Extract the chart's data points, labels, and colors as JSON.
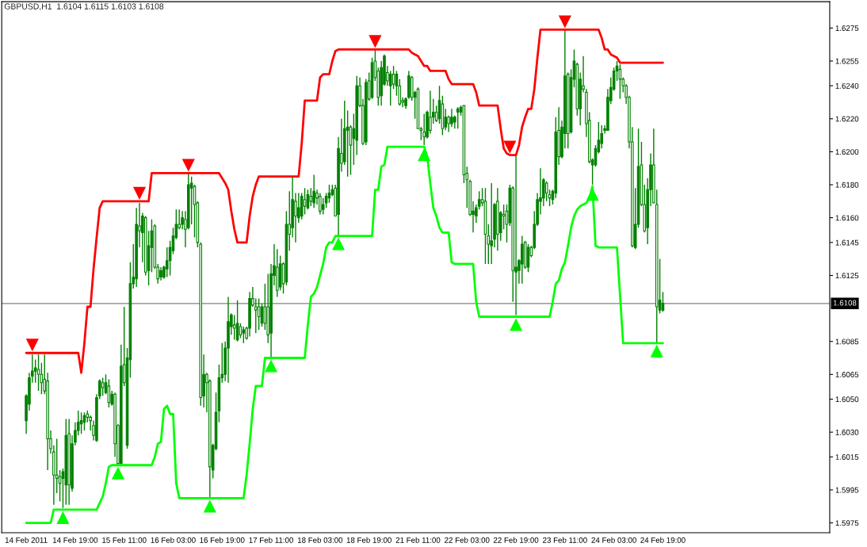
{
  "chart_data": {
    "type": "candlestick",
    "title": "GBPUSD,H1  1.6104 1.6115 1.6103 1.6108",
    "color": "#008000",
    "categories": [
      "14 Feb 2011",
      null,
      null,
      null,
      null,
      null,
      null,
      null,
      null,
      null,
      null,
      null,
      null,
      null,
      null,
      null,
      "14 Feb 19:00",
      null,
      null,
      null,
      null,
      null,
      null,
      null,
      null,
      null,
      null,
      null,
      null,
      null,
      null,
      null,
      "15 Feb 11:00",
      null,
      null,
      null,
      null,
      null,
      null,
      null,
      null,
      null,
      null,
      null,
      null,
      null,
      null,
      null,
      "16 Feb 03:00",
      null,
      null,
      null,
      null,
      null,
      null,
      null,
      null,
      null,
      null,
      null,
      null,
      null,
      null,
      null,
      "16 Feb 19:00",
      null,
      null,
      null,
      null,
      null,
      null,
      null,
      null,
      null,
      null,
      null,
      null,
      null,
      null,
      null,
      "17 Feb 11:00",
      null,
      null,
      null,
      null,
      null,
      null,
      null,
      null,
      null,
      null,
      null,
      null,
      null,
      null,
      null,
      "18 Feb 03:00",
      null,
      null,
      null,
      null,
      null,
      null,
      null,
      null,
      null,
      null,
      null,
      null,
      null,
      null,
      null,
      "18 Feb 19:00",
      null,
      null,
      null,
      null,
      null,
      null,
      null,
      null,
      null,
      null,
      null,
      null,
      null,
      null,
      null,
      "21 Feb 11:00",
      null,
      null,
      null,
      null,
      null,
      null,
      null,
      null,
      null,
      null,
      null,
      null,
      null,
      null,
      null,
      "22 Feb 03:00",
      null,
      null,
      null,
      null,
      null,
      null,
      null,
      null,
      null,
      null,
      null,
      null,
      null,
      null,
      null,
      "22 Feb 19:00",
      null,
      null,
      null,
      null,
      null,
      null,
      null,
      null,
      null,
      null,
      null,
      null,
      null,
      null,
      null,
      "23 Feb 11:00",
      null,
      null,
      null,
      null,
      null,
      null,
      null,
      null,
      null,
      null,
      null,
      null,
      null,
      null,
      null,
      "24 Feb 03:00",
      null,
      null,
      null,
      null,
      null,
      null,
      null,
      null,
      null,
      null,
      null,
      null,
      null,
      null,
      null,
      "24 Feb 19:00"
    ],
    "ohlc": [
      [
        1.6037,
        1.6053,
        1.6029,
        1.6052
      ],
      [
        1.6047,
        1.6066,
        1.6043,
        1.6063
      ],
      [
        1.6064,
        1.6077,
        1.606,
        1.6067
      ],
      [
        1.6067,
        1.6074,
        1.606,
        1.6069
      ],
      [
        1.6068,
        1.6077,
        1.6055,
        1.6065
      ],
      [
        1.6065,
        1.6072,
        1.6053,
        1.606
      ],
      [
        1.6062,
        1.6077,
        1.6053,
        1.6055
      ],
      [
        1.6061,
        1.6066,
        1.6007,
        1.6026
      ],
      [
        1.6026,
        1.6031,
        1.6017,
        1.602
      ],
      [
        1.6018,
        1.6022,
        1.5986,
        1.6004
      ],
      [
        1.6004,
        1.6026,
        1.5993,
        1.6002
      ],
      [
        1.6003,
        1.6007,
        1.5988,
        1.5999
      ],
      [
        1.6002,
        1.6008,
        1.5984,
        1.6006
      ],
      [
        1.5998,
        1.6038,
        1.5986,
        1.6028
      ],
      [
        1.6029,
        1.6038,
        1.5986,
        1.5998
      ],
      [
        1.5996,
        1.6028,
        1.5994,
        1.6023
      ],
      [
        1.6024,
        1.6036,
        1.6022,
        1.6031
      ],
      [
        1.6031,
        1.6043,
        1.6028,
        1.6036
      ],
      [
        1.6035,
        1.6042,
        1.6029,
        1.6037
      ],
      [
        1.6036,
        1.6042,
        1.6031,
        1.604
      ],
      [
        1.6041,
        1.6043,
        1.6036,
        1.6039
      ],
      [
        1.6039,
        1.604,
        1.6031,
        1.6037
      ],
      [
        1.6034,
        1.6037,
        1.6025,
        1.6028
      ],
      [
        1.6025,
        1.6053,
        1.6024,
        1.6051
      ],
      [
        1.6052,
        1.6062,
        1.605,
        1.6061
      ],
      [
        1.606,
        1.6063,
        1.6052,
        1.6057
      ],
      [
        1.6054,
        1.6065,
        1.6053,
        1.606
      ],
      [
        1.6058,
        1.6062,
        1.6045,
        1.6048
      ],
      [
        1.6047,
        1.6055,
        1.6046,
        1.6053
      ],
      [
        1.6053,
        1.6054,
        1.6015,
        1.6023
      ],
      [
        1.6034,
        1.6035,
        1.601,
        1.6011
      ],
      [
        1.6011,
        1.6083,
        1.601,
        1.607
      ],
      [
        1.6071,
        1.6106,
        1.6058,
        1.606
      ],
      [
        1.6022,
        1.6081,
        1.602,
        1.6075
      ],
      [
        1.6074,
        1.6133,
        1.6063,
        1.612
      ],
      [
        1.612,
        1.6144,
        1.6117,
        1.6124
      ],
      [
        1.6123,
        1.6166,
        1.6118,
        1.6156
      ],
      [
        1.6155,
        1.6169,
        1.6142,
        1.6152
      ],
      [
        1.6151,
        1.6163,
        1.6133,
        1.6161
      ],
      [
        1.616,
        1.6161,
        1.6125,
        1.6127
      ],
      [
        1.6128,
        1.6152,
        1.6119,
        1.6143
      ],
      [
        1.6142,
        1.6159,
        1.6127,
        1.6152
      ],
      [
        1.6155,
        1.6156,
        1.6129,
        1.613
      ],
      [
        1.613,
        1.6132,
        1.612,
        1.6123
      ],
      [
        1.6124,
        1.613,
        1.6122,
        1.6128
      ],
      [
        1.6124,
        1.6131,
        1.6123,
        1.613
      ],
      [
        1.6129,
        1.6142,
        1.6124,
        1.6134
      ],
      [
        1.6134,
        1.6146,
        1.6125,
        1.6142
      ],
      [
        1.614,
        1.6154,
        1.6138,
        1.6149
      ],
      [
        1.6148,
        1.6165,
        1.6147,
        1.6156
      ],
      [
        1.6156,
        1.6165,
        1.6153,
        1.6154
      ],
      [
        1.6156,
        1.6164,
        1.6153,
        1.616
      ],
      [
        1.6159,
        1.6164,
        1.6142,
        1.6153
      ],
      [
        1.6154,
        1.6187,
        1.6153,
        1.618
      ],
      [
        1.6178,
        1.6185,
        1.6156,
        1.6181
      ],
      [
        1.6179,
        1.618,
        1.6148,
        1.6168
      ],
      [
        1.6169,
        1.617,
        1.6142,
        1.6145
      ],
      [
        1.6144,
        1.6145,
        1.6046,
        1.6051
      ],
      [
        1.6052,
        1.6077,
        1.6045,
        1.6065
      ],
      [
        1.6065,
        1.6066,
        1.6042,
        1.606
      ],
      [
        1.6061,
        1.6062,
        1.599,
        1.6009
      ],
      [
        1.6007,
        1.6023,
        1.6002,
        1.6022
      ],
      [
        1.602,
        1.6054,
        1.6019,
        1.6042
      ],
      [
        1.6043,
        1.6071,
        1.6036,
        1.6063
      ],
      [
        1.6063,
        1.6084,
        1.606,
        1.6065
      ],
      [
        1.6065,
        1.6085,
        1.6061,
        1.6081
      ],
      [
        1.6081,
        1.6112,
        1.606,
        1.6097
      ],
      [
        1.6094,
        1.6102,
        1.6089,
        1.6101
      ],
      [
        1.6095,
        1.6101,
        1.6086,
        1.6093
      ],
      [
        1.6086,
        1.611,
        1.6085,
        1.6096
      ],
      [
        1.6094,
        1.6096,
        1.6087,
        1.6089
      ],
      [
        1.609,
        1.6094,
        1.6084,
        1.6092
      ],
      [
        1.6093,
        1.6094,
        1.6086,
        1.6087
      ],
      [
        1.6093,
        1.6115,
        1.6088,
        1.6111
      ],
      [
        1.6111,
        1.6118,
        1.6106,
        1.6107
      ],
      [
        1.6106,
        1.6111,
        1.609,
        1.6104
      ],
      [
        1.6106,
        1.6111,
        1.6092,
        1.61
      ],
      [
        1.6096,
        1.6108,
        1.6094,
        1.6106
      ],
      [
        1.6106,
        1.612,
        1.6092,
        1.6096
      ],
      [
        1.6106,
        1.6126,
        1.6084,
        1.6089
      ],
      [
        1.609,
        1.6132,
        1.6075,
        1.6126
      ],
      [
        1.6125,
        1.6144,
        1.6119,
        1.6131
      ],
      [
        1.613,
        1.6141,
        1.6112,
        1.6116
      ],
      [
        1.6118,
        1.6137,
        1.6116,
        1.6132
      ],
      [
        1.6132,
        1.6133,
        1.6114,
        1.612
      ],
      [
        1.6121,
        1.6164,
        1.6119,
        1.6156
      ],
      [
        1.6156,
        1.6176,
        1.614,
        1.615
      ],
      [
        1.6154,
        1.6185,
        1.6148,
        1.6171
      ],
      [
        1.617,
        1.6175,
        1.6145,
        1.6161
      ],
      [
        1.616,
        1.6175,
        1.6157,
        1.6166
      ],
      [
        1.6161,
        1.6175,
        1.6159,
        1.6173
      ],
      [
        1.6171,
        1.6178,
        1.6162,
        1.6167
      ],
      [
        1.6166,
        1.6177,
        1.6165,
        1.6174
      ],
      [
        1.6173,
        1.6178,
        1.6167,
        1.617
      ],
      [
        1.6169,
        1.6186,
        1.6166,
        1.6176
      ],
      [
        1.6175,
        1.6177,
        1.6168,
        1.6172
      ],
      [
        1.6173,
        1.6175,
        1.6162,
        1.6164
      ],
      [
        1.6165,
        1.6172,
        1.6162,
        1.6168
      ],
      [
        1.6169,
        1.6175,
        1.6166,
        1.6173
      ],
      [
        1.6172,
        1.618,
        1.6169,
        1.6175
      ],
      [
        1.6174,
        1.618,
        1.6173,
        1.6177
      ],
      [
        1.6178,
        1.618,
        1.6161,
        1.6161
      ],
      [
        1.6162,
        1.6209,
        1.6149,
        1.6202
      ],
      [
        1.6199,
        1.622,
        1.6188,
        1.6193
      ],
      [
        1.6194,
        1.6231,
        1.6192,
        1.6214
      ],
      [
        1.6213,
        1.6225,
        1.6185,
        1.6215
      ],
      [
        1.6215,
        1.6216,
        1.6186,
        1.6204
      ],
      [
        1.6208,
        1.6223,
        1.6192,
        1.6214
      ],
      [
        1.6207,
        1.6246,
        1.6198,
        1.624
      ],
      [
        1.624,
        1.6245,
        1.6227,
        1.6228
      ],
      [
        1.6228,
        1.6232,
        1.6204,
        1.6205
      ],
      [
        1.6206,
        1.6244,
        1.6204,
        1.6242
      ],
      [
        1.6243,
        1.6248,
        1.6231,
        1.6232
      ],
      [
        1.6233,
        1.6257,
        1.6232,
        1.6254
      ],
      [
        1.6255,
        1.6262,
        1.6243,
        1.6245
      ],
      [
        1.6249,
        1.6251,
        1.6228,
        1.6233
      ],
      [
        1.6234,
        1.6255,
        1.6228,
        1.6251
      ],
      [
        1.6241,
        1.6259,
        1.624,
        1.6258
      ],
      [
        1.6248,
        1.6252,
        1.624,
        1.6243
      ],
      [
        1.624,
        1.6249,
        1.6228,
        1.6247
      ],
      [
        1.6247,
        1.6252,
        1.6238,
        1.6241
      ],
      [
        1.624,
        1.6249,
        1.6234,
        1.6247
      ],
      [
        1.624,
        1.6244,
        1.6228,
        1.6229
      ],
      [
        1.6231,
        1.6233,
        1.6227,
        1.623
      ],
      [
        1.6228,
        1.6233,
        1.6226,
        1.6232
      ],
      [
        1.6233,
        1.6249,
        1.6232,
        1.6246
      ],
      [
        1.6245,
        1.6246,
        1.6231,
        1.6233
      ],
      [
        1.6233,
        1.6237,
        1.622,
        1.6236
      ],
      [
        1.6238,
        1.6239,
        1.6214,
        1.6214
      ],
      [
        1.6214,
        1.6215,
        1.6207,
        1.6213
      ],
      [
        1.6212,
        1.6223,
        1.6204,
        1.6209
      ],
      [
        1.6209,
        1.6225,
        1.6208,
        1.6224
      ],
      [
        1.6221,
        1.6237,
        1.6211,
        1.6213
      ],
      [
        1.6221,
        1.6232,
        1.6217,
        1.6224
      ],
      [
        1.6224,
        1.6228,
        1.6218,
        1.6219
      ],
      [
        1.622,
        1.624,
        1.6217,
        1.6231
      ],
      [
        1.6229,
        1.6234,
        1.621,
        1.6214
      ],
      [
        1.6215,
        1.6226,
        1.6213,
        1.6221
      ],
      [
        1.6221,
        1.6222,
        1.6212,
        1.6217
      ],
      [
        1.6217,
        1.6226,
        1.6215,
        1.6221
      ],
      [
        1.6218,
        1.6222,
        1.6214,
        1.6221
      ],
      [
        1.6224,
        1.6227,
        1.6214,
        1.6226
      ],
      [
        1.6224,
        1.6228,
        1.6222,
        1.6227
      ],
      [
        1.6228,
        1.6228,
        1.6181,
        1.6186
      ],
      [
        1.6187,
        1.6191,
        1.6166,
        1.6183
      ],
      [
        1.6182,
        1.6183,
        1.6161,
        1.6162
      ],
      [
        1.6162,
        1.617,
        1.6151,
        1.6164
      ],
      [
        1.6161,
        1.6168,
        1.6157,
        1.6166
      ],
      [
        1.6167,
        1.6176,
        1.6165,
        1.6171
      ],
      [
        1.6171,
        1.6178,
        1.6167,
        1.6169
      ],
      [
        1.617,
        1.6178,
        1.6132,
        1.615
      ],
      [
        1.6149,
        1.6156,
        1.6132,
        1.6144
      ],
      [
        1.6143,
        1.6181,
        1.6132,
        1.6146
      ],
      [
        1.6147,
        1.6169,
        1.6142,
        1.6168
      ],
      [
        1.617,
        1.6178,
        1.614,
        1.615
      ],
      [
        1.6151,
        1.6164,
        1.6146,
        1.6163
      ],
      [
        1.6162,
        1.6168,
        1.6153,
        1.6161
      ],
      [
        1.6164,
        1.6168,
        1.6145,
        1.6156
      ],
      [
        1.6157,
        1.618,
        1.6155,
        1.6178
      ],
      [
        1.6178,
        1.6179,
        1.6109,
        1.6128
      ],
      [
        1.6127,
        1.6198,
        1.6101,
        1.613
      ],
      [
        1.6128,
        1.6135,
        1.612,
        1.6134
      ],
      [
        1.6132,
        1.6149,
        1.612,
        1.6144
      ],
      [
        1.6145,
        1.6146,
        1.6129,
        1.613
      ],
      [
        1.613,
        1.6144,
        1.6127,
        1.6142
      ],
      [
        1.6142,
        1.6143,
        1.6136,
        1.6137
      ],
      [
        1.6142,
        1.6164,
        1.6141,
        1.6156
      ],
      [
        1.6156,
        1.6175,
        1.6155,
        1.6171
      ],
      [
        1.617,
        1.619,
        1.6162,
        1.6172
      ],
      [
        1.6172,
        1.6184,
        1.6167,
        1.6183
      ],
      [
        1.6181,
        1.6182,
        1.617,
        1.6175
      ],
      [
        1.6174,
        1.6177,
        1.6167,
        1.6172
      ],
      [
        1.6171,
        1.6177,
        1.6168,
        1.6176
      ],
      [
        1.6175,
        1.6221,
        1.6172,
        1.6212
      ],
      [
        1.6213,
        1.6227,
        1.6192,
        1.6197
      ],
      [
        1.6197,
        1.6219,
        1.6196,
        1.6215
      ],
      [
        1.6211,
        1.6274,
        1.6202,
        1.6246
      ],
      [
        1.6247,
        1.6248,
        1.6202,
        1.6211
      ],
      [
        1.6212,
        1.625,
        1.6211,
        1.6245
      ],
      [
        1.6244,
        1.6262,
        1.6239,
        1.6255
      ],
      [
        1.6253,
        1.6254,
        1.6222,
        1.6226
      ],
      [
        1.6226,
        1.6248,
        1.6216,
        1.6244
      ],
      [
        1.624,
        1.6258,
        1.6236,
        1.6238
      ],
      [
        1.6236,
        1.6238,
        1.6209,
        1.6217
      ],
      [
        1.6219,
        1.6224,
        1.6193,
        1.6194
      ],
      [
        1.6192,
        1.6196,
        1.618,
        1.6195
      ],
      [
        1.6192,
        1.6204,
        1.6191,
        1.6202
      ],
      [
        1.62,
        1.6218,
        1.6199,
        1.6207
      ],
      [
        1.6205,
        1.6216,
        1.6202,
        1.6211
      ],
      [
        1.6213,
        1.6216,
        1.6211,
        1.6214
      ],
      [
        1.6213,
        1.6238,
        1.6213,
        1.6233
      ],
      [
        1.6231,
        1.6245,
        1.6229,
        1.6239
      ],
      [
        1.6238,
        1.6251,
        1.6237,
        1.6249
      ],
      [
        1.6249,
        1.6255,
        1.6243,
        1.6252
      ],
      [
        1.625,
        1.6253,
        1.6232,
        1.6244
      ],
      [
        1.6244,
        1.6245,
        1.6236,
        1.624
      ],
      [
        1.624,
        1.6241,
        1.6229,
        1.6233
      ],
      [
        1.6233,
        1.6234,
        1.6202,
        1.6206
      ],
      [
        1.6206,
        1.6215,
        1.6142,
        1.6143
      ],
      [
        1.6142,
        1.6178,
        1.6141,
        1.6156
      ],
      [
        1.6156,
        1.6214,
        1.6154,
        1.6191
      ],
      [
        1.6192,
        1.6206,
        1.6167,
        1.6168
      ],
      [
        1.6168,
        1.618,
        1.6151,
        1.6152
      ],
      [
        1.6154,
        1.6184,
        1.6144,
        1.6177
      ],
      [
        1.6177,
        1.6199,
        1.6167,
        1.6192
      ],
      [
        1.6192,
        1.6214,
        1.6169,
        1.6169
      ],
      [
        1.6168,
        1.6177,
        1.6084,
        1.6106
      ],
      [
        1.6104,
        1.6135,
        1.6102,
        1.611
      ],
      [
        1.6104,
        1.6115,
        1.6103,
        1.6108
      ]
    ],
    "series": [
      {
        "type": "line",
        "color": "#ff0000",
        "values": [
          1.6078,
          1.6078,
          1.6078,
          1.6078,
          1.6078,
          1.6078,
          1.6078,
          1.6078,
          1.6078,
          1.6078,
          1.6078,
          1.6078,
          1.6078,
          1.6078,
          1.6078,
          1.6078,
          1.6078,
          1.6078,
          1.6066,
          1.6084,
          1.6106,
          1.6106,
          1.6129,
          1.6148,
          1.6166,
          1.617,
          1.617,
          1.617,
          1.617,
          1.617,
          1.617,
          1.617,
          1.617,
          1.617,
          1.617,
          1.617,
          1.617,
          1.617,
          1.617,
          1.617,
          1.617,
          1.6187,
          1.6187,
          1.6187,
          1.6187,
          1.6187,
          1.6187,
          1.6187,
          1.6187,
          1.6187,
          1.6187,
          1.6187,
          1.6187,
          1.6187,
          1.6187,
          1.6187,
          1.6187,
          1.6187,
          1.6187,
          1.6187,
          1.6187,
          1.6187,
          1.6187,
          1.6187,
          1.6184,
          1.6181,
          1.6177,
          1.6164,
          1.6153,
          1.6145,
          1.6145,
          1.6145,
          1.6145,
          1.6161,
          1.6173,
          1.618,
          1.6185,
          1.6185,
          1.6185,
          1.6185,
          1.6185,
          1.6185,
          1.6185,
          1.6185,
          1.6185,
          1.6185,
          1.6185,
          1.6185,
          1.6185,
          1.6185,
          1.6205,
          1.6231,
          1.6231,
          1.6231,
          1.6231,
          1.6231,
          1.6245,
          1.6247,
          1.6247,
          1.6247,
          1.6255,
          1.6261,
          1.6262,
          1.6262,
          1.6262,
          1.6262,
          1.6262,
          1.6262,
          1.6262,
          1.6262,
          1.6262,
          1.6262,
          1.6262,
          1.6262,
          1.6262,
          1.6262,
          1.6262,
          1.6262,
          1.6262,
          1.6262,
          1.6262,
          1.6262,
          1.6262,
          1.6262,
          1.6262,
          1.6262,
          1.626,
          1.6259,
          1.6258,
          1.6255,
          1.6252,
          1.6252,
          1.6249,
          1.6249,
          1.6249,
          1.6249,
          1.6249,
          1.6249,
          1.6244,
          1.6241,
          1.6241,
          1.6241,
          1.6241,
          1.6241,
          1.6241,
          1.6241,
          1.6241,
          1.6236,
          1.6228,
          1.6228,
          1.6228,
          1.6228,
          1.6228,
          1.6228,
          1.6228,
          1.6214,
          1.6202,
          1.6199,
          1.6198,
          1.6198,
          1.6198,
          1.6204,
          1.6215,
          1.6221,
          1.6226,
          1.6226,
          1.6238,
          1.6257,
          1.6274,
          1.6274,
          1.6274,
          1.6274,
          1.6274,
          1.6274,
          1.6274,
          1.6274,
          1.6274,
          1.6274,
          1.6274,
          1.6274,
          1.6274,
          1.6274,
          1.6274,
          1.6274,
          1.6274,
          1.6274,
          1.6274,
          1.6274,
          1.6269,
          1.6262,
          1.6262,
          1.6259,
          1.6258,
          1.6257,
          1.6254,
          1.6254,
          1.6254,
          1.6254,
          1.6254,
          1.6254,
          1.6254,
          1.6254,
          1.6254,
          1.6254,
          1.6254,
          1.6254,
          1.6254,
          1.6254,
          1.6254
        ]
      },
      {
        "type": "line",
        "color": "#00ff00",
        "values": [
          1.5975,
          1.5975,
          1.5975,
          1.5975,
          1.5975,
          1.5975,
          1.5975,
          1.5975,
          1.5975,
          1.5983,
          1.5983,
          1.5983,
          1.5983,
          1.5983,
          1.5983,
          1.5983,
          1.5983,
          1.5983,
          1.5983,
          1.5983,
          1.5983,
          1.5983,
          1.5983,
          1.5983,
          1.5987,
          1.5991,
          1.5999,
          1.6009,
          1.601,
          1.601,
          1.601,
          1.601,
          1.601,
          1.601,
          1.601,
          1.601,
          1.601,
          1.601,
          1.601,
          1.601,
          1.601,
          1.601,
          1.6015,
          1.6023,
          1.6024,
          1.6044,
          1.6046,
          1.6041,
          1.6041,
          1.5999,
          1.599,
          1.599,
          1.599,
          1.599,
          1.599,
          1.599,
          1.599,
          1.599,
          1.599,
          1.599,
          1.599,
          1.599,
          1.599,
          1.599,
          1.599,
          1.599,
          1.599,
          1.599,
          1.599,
          1.599,
          1.599,
          1.599,
          1.6004,
          1.6023,
          1.6044,
          1.6058,
          1.6058,
          1.6058,
          1.6075,
          1.6075,
          1.6075,
          1.6075,
          1.6075,
          1.6075,
          1.6075,
          1.6075,
          1.6075,
          1.6075,
          1.6075,
          1.6075,
          1.6075,
          1.6075,
          1.6095,
          1.6112,
          1.6114,
          1.6118,
          1.6125,
          1.6132,
          1.6142,
          1.6145,
          1.6145,
          1.6149,
          1.6149,
          1.6149,
          1.6149,
          1.6149,
          1.6149,
          1.6149,
          1.6149,
          1.6149,
          1.6149,
          1.6149,
          1.6149,
          1.6149,
          1.6177,
          1.6177,
          1.6191,
          1.6192,
          1.6203,
          1.6203,
          1.6203,
          1.6203,
          1.6203,
          1.6203,
          1.6203,
          1.6203,
          1.6203,
          1.6203,
          1.6203,
          1.6203,
          1.6203,
          1.6197,
          1.6181,
          1.6166,
          1.6161,
          1.6154,
          1.6151,
          1.6151,
          1.6151,
          1.6133,
          1.6132,
          1.6132,
          1.6132,
          1.6132,
          1.6132,
          1.6132,
          1.6132,
          1.6109,
          1.61,
          1.61,
          1.61,
          1.61,
          1.61,
          1.61,
          1.61,
          1.61,
          1.61,
          1.61,
          1.61,
          1.61,
          1.61,
          1.61,
          1.61,
          1.61,
          1.61,
          1.61,
          1.61,
          1.61,
          1.61,
          1.61,
          1.61,
          1.61,
          1.6109,
          1.612,
          1.6122,
          1.6129,
          1.6133,
          1.6143,
          1.6154,
          1.6161,
          1.6165,
          1.6167,
          1.6168,
          1.6169,
          1.6172,
          1.6179,
          1.6143,
          1.6142,
          1.6142,
          1.6142,
          1.6142,
          1.6142,
          1.6142,
          1.6142,
          1.6113,
          1.6084,
          1.6084,
          1.6084,
          1.6084,
          1.6084,
          1.6084,
          1.6084,
          1.6084,
          1.6084,
          1.6084,
          1.6084,
          1.6084,
          1.6084,
          1.6084
        ]
      },
      {
        "type": "scatter",
        "color": "#ff0000",
        "marker": "triangle",
        "values": [
          null,
          null,
          1.6083,
          null,
          null,
          null,
          null,
          null,
          null,
          null,
          null,
          null,
          null,
          null,
          null,
          null,
          null,
          null,
          null,
          null,
          null,
          null,
          null,
          null,
          null,
          null,
          null,
          null,
          null,
          null,
          null,
          null,
          null,
          null,
          null,
          null,
          null,
          1.6175,
          null,
          null,
          null,
          null,
          null,
          null,
          null,
          null,
          null,
          null,
          null,
          null,
          null,
          null,
          null,
          1.6192,
          null,
          null,
          null,
          null,
          null,
          null,
          null,
          null,
          null,
          null,
          null,
          null,
          null,
          null,
          null,
          null,
          null,
          null,
          null,
          null,
          null,
          null,
          null,
          null,
          null,
          null,
          null,
          null,
          null,
          null,
          null,
          null,
          null,
          null,
          null,
          null,
          null,
          null,
          null,
          null,
          null,
          null,
          null,
          null,
          null,
          null,
          null,
          null,
          null,
          null,
          null,
          null,
          null,
          null,
          null,
          null,
          null,
          null,
          null,
          null,
          1.6267,
          null,
          null,
          null,
          null,
          null,
          null,
          null,
          null,
          null,
          null,
          null,
          null,
          null,
          null,
          null,
          null,
          null,
          null,
          null,
          null,
          null,
          null,
          null,
          null,
          null,
          null,
          null,
          null,
          null,
          null,
          null,
          null,
          null,
          null,
          null,
          null,
          null,
          null,
          null,
          null,
          null,
          null,
          null,
          1.6203,
          null,
          null,
          null,
          null,
          null,
          null,
          null,
          null,
          null,
          null,
          null,
          null,
          null,
          null,
          null,
          null,
          null,
          1.6279,
          null,
          null,
          null,
          null,
          null,
          null,
          null,
          null,
          null,
          null,
          null,
          null,
          null,
          null,
          null,
          null,
          null,
          null,
          null,
          null,
          null,
          null,
          null,
          null,
          null,
          null,
          null,
          null,
          null,
          null,
          null,
          null
        ]
      },
      {
        "type": "scatter",
        "color": "#00ff00",
        "marker": "triangle",
        "values": [
          null,
          null,
          null,
          null,
          null,
          null,
          null,
          null,
          null,
          null,
          null,
          null,
          1.5978,
          null,
          null,
          null,
          null,
          null,
          null,
          null,
          null,
          null,
          null,
          null,
          null,
          null,
          null,
          null,
          null,
          null,
          1.6005,
          null,
          null,
          null,
          null,
          null,
          null,
          null,
          null,
          null,
          null,
          null,
          null,
          null,
          null,
          null,
          null,
          null,
          null,
          null,
          null,
          null,
          null,
          null,
          null,
          null,
          null,
          null,
          null,
          null,
          1.5985,
          null,
          null,
          null,
          null,
          null,
          null,
          null,
          null,
          null,
          null,
          null,
          null,
          null,
          null,
          null,
          null,
          null,
          null,
          null,
          1.607,
          null,
          null,
          null,
          null,
          null,
          null,
          null,
          null,
          null,
          null,
          null,
          null,
          null,
          null,
          null,
          null,
          null,
          null,
          null,
          null,
          null,
          1.6144,
          null,
          null,
          null,
          null,
          null,
          null,
          null,
          null,
          null,
          null,
          null,
          null,
          null,
          null,
          null,
          null,
          null,
          null,
          null,
          null,
          null,
          null,
          null,
          null,
          null,
          null,
          null,
          1.6198,
          null,
          null,
          null,
          null,
          null,
          null,
          null,
          null,
          null,
          null,
          null,
          null,
          null,
          null,
          null,
          null,
          null,
          null,
          null,
          null,
          null,
          null,
          null,
          null,
          null,
          null,
          null,
          null,
          null,
          1.6095,
          null,
          null,
          null,
          null,
          null,
          null,
          null,
          null,
          null,
          null,
          null,
          null,
          null,
          null,
          null,
          null,
          null,
          null,
          null,
          null,
          null,
          null,
          null,
          null,
          1.6174,
          null,
          null,
          null,
          null,
          null,
          null,
          null,
          null,
          null,
          null,
          null,
          null,
          null,
          null,
          null,
          null,
          null,
          null,
          null,
          null,
          1.6079,
          null,
          null
        ]
      }
    ],
    "ref_lines": [
      {
        "axis": "y",
        "value": 1.6108,
        "label": "1.6108",
        "color": "#808080"
      }
    ],
    "ylim": [
      1.5969,
      1.6291
    ],
    "yticks": [
      {
        "value": 1.5975,
        "label": "1.5975"
      },
      {
        "value": 1.5995,
        "label": "1.5995"
      },
      {
        "value": 1.6015,
        "label": "1.6015"
      },
      {
        "value": 1.603,
        "label": "1.6030"
      },
      {
        "value": 1.605,
        "label": "1.6050"
      },
      {
        "value": 1.6065,
        "label": "1.6065"
      },
      {
        "value": 1.6085,
        "label": "1.6085"
      },
      {
        "value": 1.6125,
        "label": "1.6125"
      },
      {
        "value": 1.6145,
        "label": "1.6145"
      },
      {
        "value": 1.616,
        "label": "1.6160"
      },
      {
        "value": 1.618,
        "label": "1.6180"
      },
      {
        "value": 1.62,
        "label": "1.6200"
      },
      {
        "value": 1.622,
        "label": "1.6220"
      },
      {
        "value": 1.624,
        "label": "1.6240"
      },
      {
        "value": 1.6255,
        "label": "1.6255"
      },
      {
        "value": 1.6275,
        "label": "1.6275"
      }
    ]
  }
}
